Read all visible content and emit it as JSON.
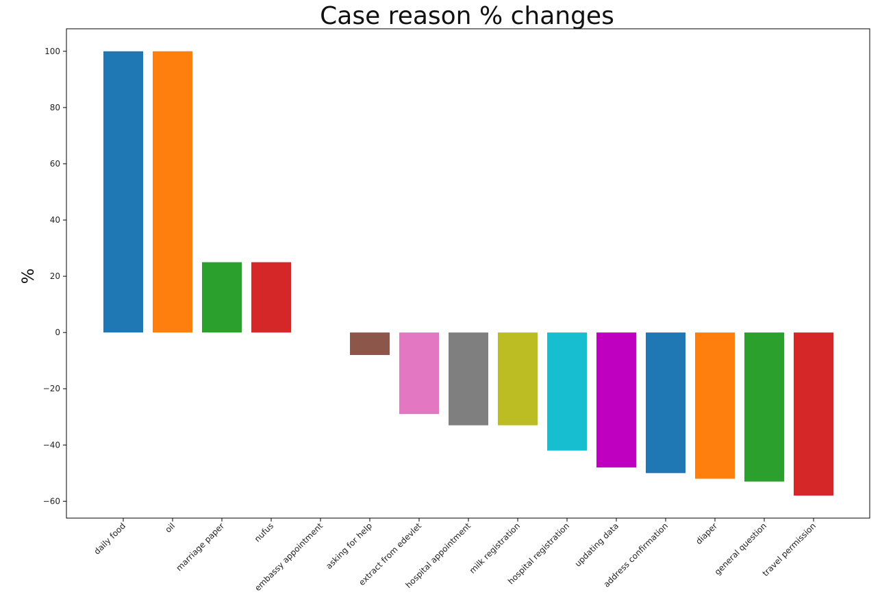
{
  "chart_data": {
    "type": "bar",
    "title": "Case reason % changes",
    "xlabel": "",
    "ylabel": "%",
    "ylim": [
      -66,
      108
    ],
    "yticks": [
      100,
      80,
      60,
      40,
      20,
      0,
      -20,
      -40,
      -60
    ],
    "ytick_labels": [
      "100",
      "80",
      "60",
      "40",
      "20",
      "0",
      "−20",
      "−40",
      "−60"
    ],
    "grid": false,
    "legend": "none",
    "categories": [
      "daily food",
      "oil",
      "marriage paper",
      "nufus",
      "embassy appointment",
      "asking for help",
      "extract from edevlet",
      "hospital appointment",
      "milk registration",
      "hospital registration",
      "updating data",
      "address confirmation",
      "diaper",
      "general question",
      "travel permission"
    ],
    "values": [
      100,
      100,
      25,
      25,
      0,
      -8,
      -29,
      -33,
      -33,
      -42,
      -48,
      -50,
      -52,
      -53,
      -58
    ],
    "colors": [
      "#1f77b4",
      "#ff7f0e",
      "#2ca02c",
      "#d62728",
      "#9467bd",
      "#8c564b",
      "#e377c2",
      "#7f7f7f",
      "#bcbd22",
      "#17becf",
      "#c000c0",
      "#1f77b4",
      "#ff7f0e",
      "#2ca02c",
      "#d62728"
    ]
  }
}
